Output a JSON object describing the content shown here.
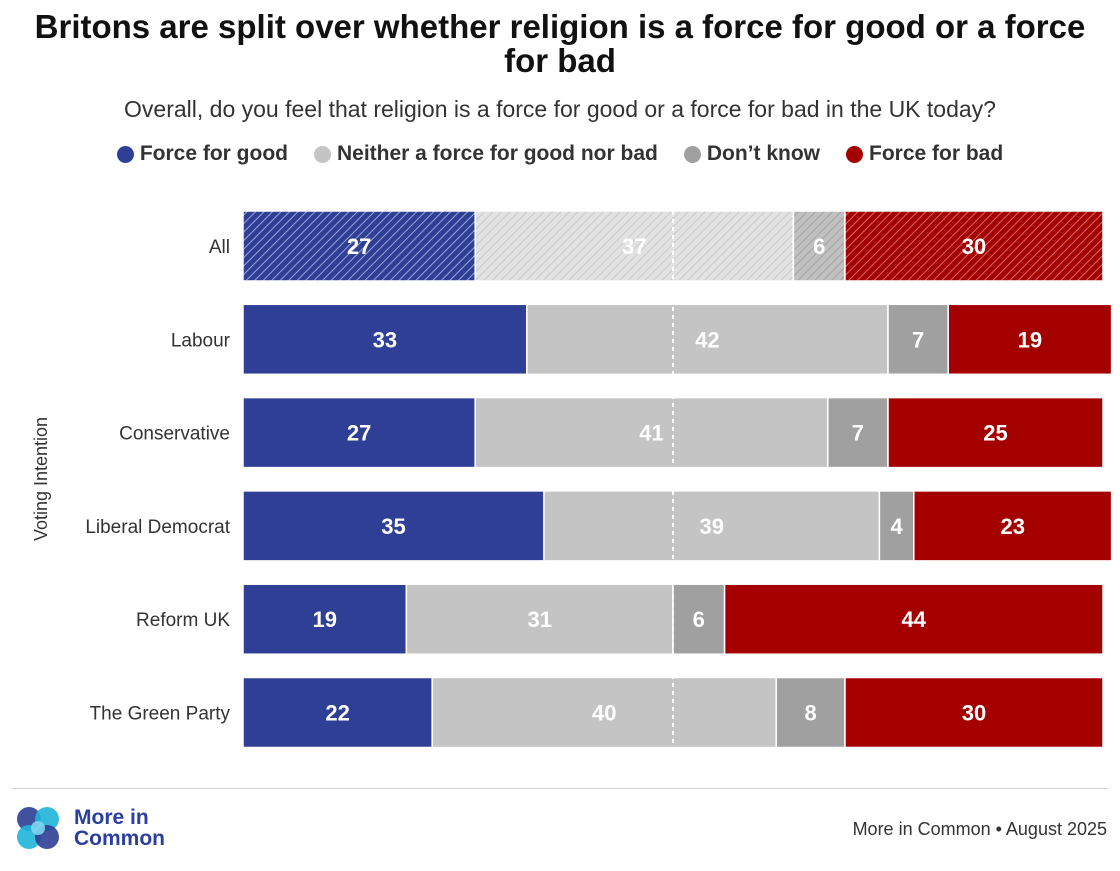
{
  "title": "Britons are split over whether religion is a force for good or a force for bad",
  "subtitle": "Overall, do you feel that religion is a force for good or a force for bad in the UK today?",
  "legend": [
    {
      "label": "Force for good",
      "color": "#2e3f95"
    },
    {
      "label": "Neither a force for good nor bad",
      "color": "#c4c4c4"
    },
    {
      "label": "Don’t know",
      "color": "#a0a0a0"
    },
    {
      "label": "Force for bad",
      "color": "#a50000"
    }
  ],
  "chart_data": {
    "type": "bar",
    "orientation": "horizontal",
    "stacked": "100%",
    "ylabel": "Voting Intention",
    "categories": [
      "All",
      "Labour",
      "Conservative",
      "Liberal Democrat",
      "Reform UK",
      "The Green Party"
    ],
    "series": [
      {
        "name": "Force for good",
        "color": "#2e3f95",
        "values": [
          27,
          33,
          27,
          35,
          19,
          22
        ]
      },
      {
        "name": "Neither a force for good nor bad",
        "color": "#c4c4c4",
        "values": [
          37,
          42,
          41,
          39,
          31,
          40
        ]
      },
      {
        "name": "Don’t know",
        "color": "#a0a0a0",
        "values": [
          6,
          7,
          7,
          4,
          6,
          8
        ]
      },
      {
        "name": "Force for bad",
        "color": "#a50000",
        "values": [
          30,
          19,
          25,
          23,
          44,
          30
        ]
      }
    ],
    "xlim": [
      0,
      100
    ],
    "midline_at": 50,
    "hatched_categories": [
      "All"
    ],
    "data_labels": true
  },
  "footer": {
    "logo_line1": "More in",
    "logo_line2": "Common",
    "source": "More in Common • August 2025"
  }
}
